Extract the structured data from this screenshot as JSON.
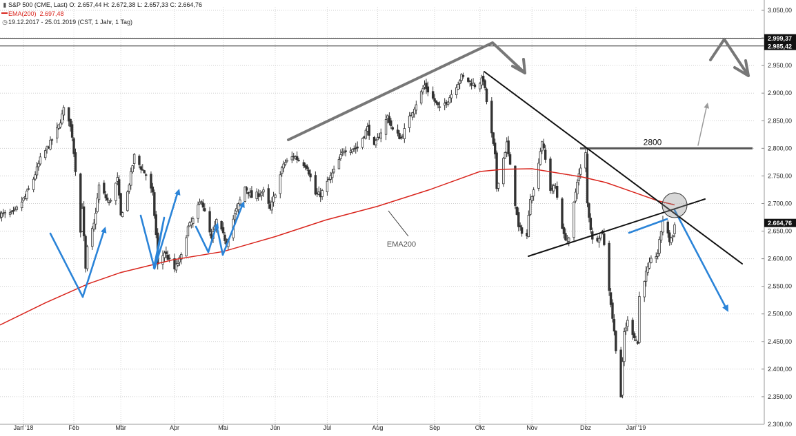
{
  "header": {
    "line1": "S&P 500 (CME, Last)  O: 2.657,44  H: 2.672,38  L: 2.657,33  C: 2.664,76",
    "line2_label": "EMA(200)",
    "line2_value": "2.697,48",
    "line3": "19.12.2017 - 25.01.2019  (CST, 1 Jahr, 1 Tag)"
  },
  "colors": {
    "candle": "#333333",
    "ema": "#d9251d",
    "annotation_blue": "#2b84d8",
    "annotation_gray": "#777777",
    "trend_black": "#111111"
  },
  "chart_data": {
    "type": "candlestick",
    "ylim": [
      2300,
      3060
    ],
    "y_ticks": [
      "3.050,00",
      "3.000,00",
      "2.950,00",
      "2.900,00",
      "2.850,00",
      "2.800,00",
      "2.750,00",
      "2.700,00",
      "2.650,00",
      "2.600,00",
      "2.550,00",
      "2.500,00",
      "2.450,00",
      "2.400,00",
      "2.350,00",
      "2.300,00"
    ],
    "x_tick_labels": [
      "Jan '18",
      "Feb",
      "Mär",
      "Apr",
      "Mai",
      "Jun",
      "Jul",
      "Aug",
      "Sep",
      "Okt",
      "Nov",
      "Dez",
      "Jan '19"
    ],
    "price_labels": [
      {
        "text": "2.999,37",
        "value": 2999.37
      },
      {
        "text": "2.985,42",
        "value": 2985.42
      },
      {
        "text": "2.664,76",
        "value": 2664.76
      }
    ],
    "horizontal_lines": [
      2999.37,
      2985.42
    ],
    "close_path": [
      [
        "2017-12-19",
        2680
      ],
      [
        "2017-12-27",
        2682
      ],
      [
        "2018-01-03",
        2712
      ],
      [
        "2018-01-08",
        2745
      ],
      [
        "2018-01-12",
        2780
      ],
      [
        "2018-01-18",
        2810
      ],
      [
        "2018-01-23",
        2840
      ],
      [
        "2018-01-26",
        2870
      ],
      [
        "2018-01-29",
        2853
      ],
      [
        "2018-01-31",
        2823
      ],
      [
        "2018-02-02",
        2762
      ],
      [
        "2018-02-05",
        2648
      ],
      [
        "2018-02-06",
        2695
      ],
      [
        "2018-02-08",
        2580
      ],
      [
        "2018-02-09",
        2618
      ],
      [
        "2018-02-13",
        2662
      ],
      [
        "2018-02-16",
        2732
      ],
      [
        "2018-02-22",
        2700
      ],
      [
        "2018-02-27",
        2744
      ],
      [
        "2018-03-01",
        2677
      ],
      [
        "2018-03-05",
        2720
      ],
      [
        "2018-03-09",
        2786
      ],
      [
        "2018-03-13",
        2765
      ],
      [
        "2018-03-16",
        2752
      ],
      [
        "2018-03-20",
        2716
      ],
      [
        "2018-03-22",
        2643
      ],
      [
        "2018-03-23",
        2588
      ],
      [
        "2018-03-27",
        2612
      ],
      [
        "2018-04-02",
        2581
      ],
      [
        "2018-04-06",
        2604
      ],
      [
        "2018-04-10",
        2656
      ],
      [
        "2018-04-13",
        2670
      ],
      [
        "2018-04-18",
        2708
      ],
      [
        "2018-04-24",
        2634
      ],
      [
        "2018-04-27",
        2669
      ],
      [
        "2018-05-03",
        2629
      ],
      [
        "2018-05-07",
        2672
      ],
      [
        "2018-05-14",
        2730
      ],
      [
        "2018-05-18",
        2712
      ],
      [
        "2018-05-25",
        2721
      ],
      [
        "2018-05-29",
        2689
      ],
      [
        "2018-06-06",
        2772
      ],
      [
        "2018-06-12",
        2786
      ],
      [
        "2018-06-15",
        2779
      ],
      [
        "2018-06-20",
        2767
      ],
      [
        "2018-06-25",
        2717
      ],
      [
        "2018-06-28",
        2716
      ],
      [
        "2018-07-06",
        2759
      ],
      [
        "2018-07-12",
        2798
      ],
      [
        "2018-07-20",
        2801
      ],
      [
        "2018-07-26",
        2837
      ],
      [
        "2018-07-30",
        2802
      ],
      [
        "2018-08-07",
        2858
      ],
      [
        "2018-08-10",
        2833
      ],
      [
        "2018-08-15",
        2818
      ],
      [
        "2018-08-21",
        2862
      ],
      [
        "2018-08-29",
        2914
      ],
      [
        "2018-09-07",
        2871
      ],
      [
        "2018-09-12",
        2888
      ],
      [
        "2018-09-20",
        2930
      ],
      [
        "2018-09-28",
        2914
      ],
      [
        "2018-10-03",
        2925
      ],
      [
        "2018-10-05",
        2885
      ],
      [
        "2018-10-10",
        2785
      ],
      [
        "2018-10-11",
        2728
      ],
      [
        "2018-10-17",
        2809
      ],
      [
        "2018-10-19",
        2767
      ],
      [
        "2018-10-24",
        2656
      ],
      [
        "2018-10-29",
        2641
      ],
      [
        "2018-10-31",
        2712
      ],
      [
        "2018-11-02",
        2723
      ],
      [
        "2018-11-07",
        2814
      ],
      [
        "2018-11-12",
        2726
      ],
      [
        "2018-11-15",
        2730
      ],
      [
        "2018-11-20",
        2641
      ],
      [
        "2018-11-23",
        2633
      ],
      [
        "2018-11-28",
        2743
      ],
      [
        "2018-12-03",
        2790
      ],
      [
        "2018-12-04",
        2700
      ],
      [
        "2018-12-07",
        2633
      ],
      [
        "2018-12-10",
        2637
      ],
      [
        "2018-12-13",
        2650
      ],
      [
        "2018-12-17",
        2545
      ],
      [
        "2018-12-20",
        2467
      ],
      [
        "2018-12-24",
        2351
      ],
      [
        "2018-12-26",
        2467
      ],
      [
        "2018-12-28",
        2486
      ],
      [
        "2019-01-03",
        2447
      ],
      [
        "2019-01-04",
        2531
      ],
      [
        "2019-01-08",
        2574
      ],
      [
        "2019-01-11",
        2596
      ],
      [
        "2019-01-15",
        2610
      ],
      [
        "2019-01-18",
        2671
      ],
      [
        "2019-01-22",
        2633
      ],
      [
        "2019-01-24",
        2642
      ],
      [
        "2019-01-25",
        2665
      ]
    ],
    "ema200": [
      [
        "2017-12-19",
        2480
      ],
      [
        "2018-01-15",
        2520
      ],
      [
        "2018-02-10",
        2555
      ],
      [
        "2018-03-01",
        2575
      ],
      [
        "2018-04-01",
        2598
      ],
      [
        "2018-05-01",
        2613
      ],
      [
        "2018-06-01",
        2640
      ],
      [
        "2018-07-01",
        2670
      ],
      [
        "2018-08-01",
        2695
      ],
      [
        "2018-09-01",
        2725
      ],
      [
        "2018-10-01",
        2758
      ],
      [
        "2018-10-15",
        2762
      ],
      [
        "2018-11-01",
        2763
      ],
      [
        "2018-11-15",
        2756
      ],
      [
        "2018-12-01",
        2748
      ],
      [
        "2018-12-15",
        2738
      ],
      [
        "2019-01-01",
        2720
      ],
      [
        "2019-01-15",
        2705
      ],
      [
        "2019-01-25",
        2697.48
      ]
    ],
    "annotations": {
      "ema_label": "EMA200",
      "level_label": "2800",
      "level_value": 2800
    }
  }
}
